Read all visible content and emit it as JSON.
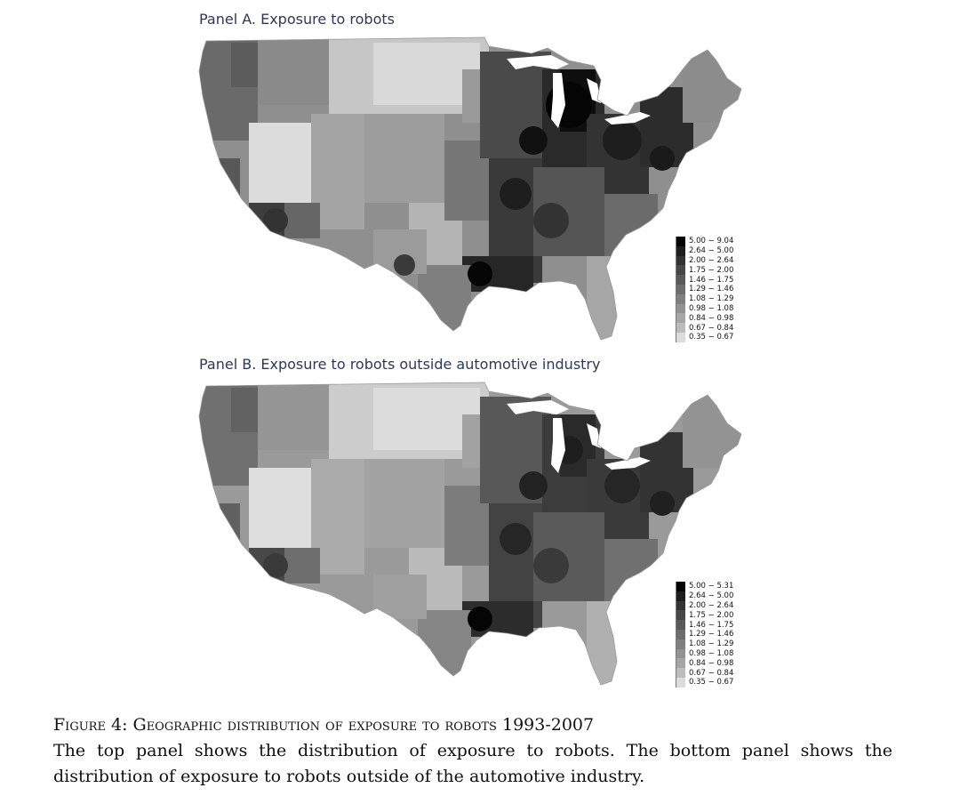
{
  "panels": [
    {
      "id": "A",
      "title": "Panel A. Exposure to robots",
      "legend": [
        {
          "label": "5.00 − 9.04",
          "color": "#050505"
        },
        {
          "label": "2.64 − 5.00",
          "color": "#1e1e1e"
        },
        {
          "label": "2.00 − 2.64",
          "color": "#333333"
        },
        {
          "label": "1.75 − 2.00",
          "color": "#474747"
        },
        {
          "label": "1.46 − 1.75",
          "color": "#5a5a5a"
        },
        {
          "label": "1.29 − 1.46",
          "color": "#6d6d6d"
        },
        {
          "label": "1.08 − 1.29",
          "color": "#808080"
        },
        {
          "label": "0.98 − 1.08",
          "color": "#939393"
        },
        {
          "label": "0.84 − 0.98",
          "color": "#a6a6a6"
        },
        {
          "label": "0.67 − 0.84",
          "color": "#bcbcbc"
        },
        {
          "label": "0.35 − 0.67",
          "color": "#dcdcdc"
        }
      ]
    },
    {
      "id": "B",
      "title": "Panel B. Exposure to robots outside automotive industry",
      "legend": [
        {
          "label": "5.00 − 5.31",
          "color": "#050505"
        },
        {
          "label": "2.64 − 5.00",
          "color": "#1e1e1e"
        },
        {
          "label": "2.00 − 2.64",
          "color": "#333333"
        },
        {
          "label": "1.75 − 2.00",
          "color": "#474747"
        },
        {
          "label": "1.46 − 1.75",
          "color": "#5a5a5a"
        },
        {
          "label": "1.29 − 1.46",
          "color": "#6d6d6d"
        },
        {
          "label": "1.08 − 1.29",
          "color": "#808080"
        },
        {
          "label": "0.98 − 1.08",
          "color": "#939393"
        },
        {
          "label": "0.84 − 0.98",
          "color": "#a6a6a6"
        },
        {
          "label": "0.67 − 0.84",
          "color": "#bcbcbc"
        },
        {
          "label": "0.35 − 0.67",
          "color": "#dcdcdc"
        }
      ]
    }
  ],
  "caption": {
    "figure_label": "Figure 4:",
    "title": "Geographic distribution of exposure to robots 1993-2007",
    "text": "The top panel shows the distribution of exposure to robots.  The bottom panel shows the distribution of exposure to robots outside of the automotive industry."
  }
}
